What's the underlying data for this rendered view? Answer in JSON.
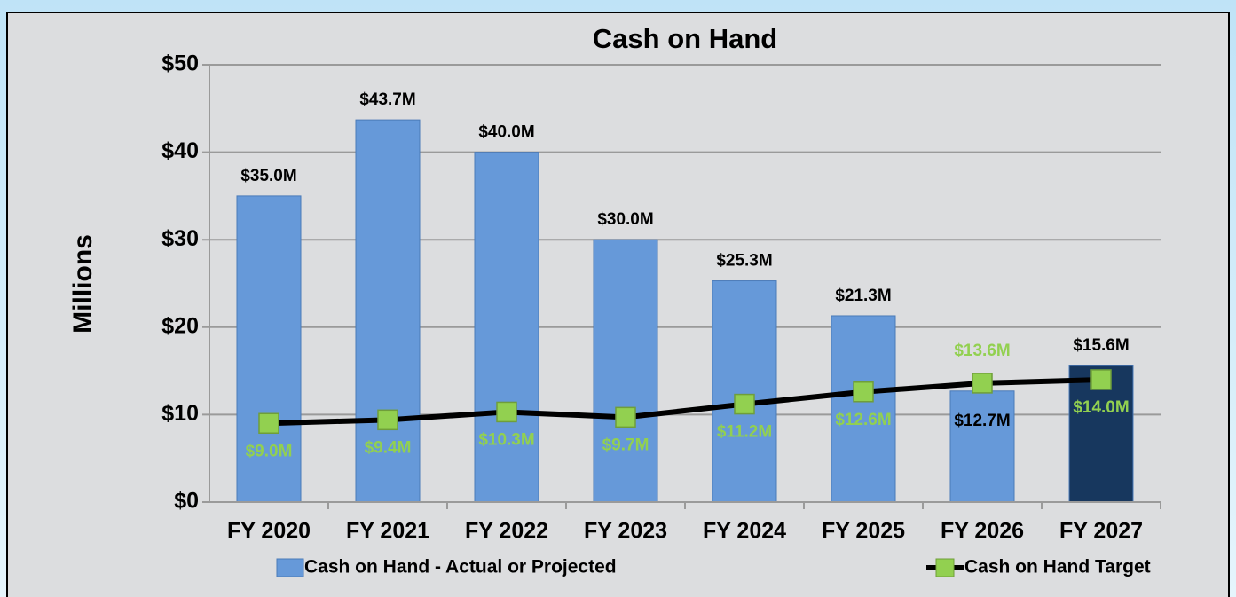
{
  "chart_data": {
    "type": "bar",
    "title": "Cash on Hand",
    "y_label": "Millions",
    "categories": [
      "FY 2020",
      "FY 2021",
      "FY 2022",
      "FY 2023",
      "FY 2024",
      "FY 2025",
      "FY 2026",
      "FY 2027"
    ],
    "series": [
      {
        "name": "Cash on Hand - Actual or Projected",
        "type": "bar",
        "colors": [
          "#6699d9",
          "#6699d9",
          "#6699d9",
          "#6699d9",
          "#6699d9",
          "#6699d9",
          "#6699d9",
          "#17375e"
        ],
        "values": [
          35.0,
          43.7,
          40.0,
          30.0,
          25.3,
          21.3,
          12.7,
          15.6
        ],
        "value_labels": [
          "$35.0M",
          "$43.7M",
          "$40.0M",
          "$30.0M",
          "$25.3M",
          "$21.3M",
          "$12.7M",
          "$15.6M"
        ]
      },
      {
        "name": "Cash on Hand Target",
        "type": "line",
        "color": "#000000",
        "marker_color": "#92d050",
        "values": [
          9.0,
          9.4,
          10.3,
          9.7,
          11.2,
          12.6,
          13.6,
          14.0
        ],
        "value_labels": [
          "$9.0M",
          "$9.4M",
          "$10.3M",
          "$9.7M",
          "$11.2M",
          "$12.6M",
          "$13.6M",
          "$14.0M"
        ]
      }
    ],
    "ylim": [
      0,
      50
    ],
    "yticks": [
      {
        "value": 0,
        "label": "$0"
      },
      {
        "value": 10,
        "label": "$10"
      },
      {
        "value": 20,
        "label": "$20"
      },
      {
        "value": 30,
        "label": "$30"
      },
      {
        "value": 40,
        "label": "$40"
      },
      {
        "value": 50,
        "label": "$50"
      }
    ],
    "grid": true,
    "legend": "bottom"
  }
}
